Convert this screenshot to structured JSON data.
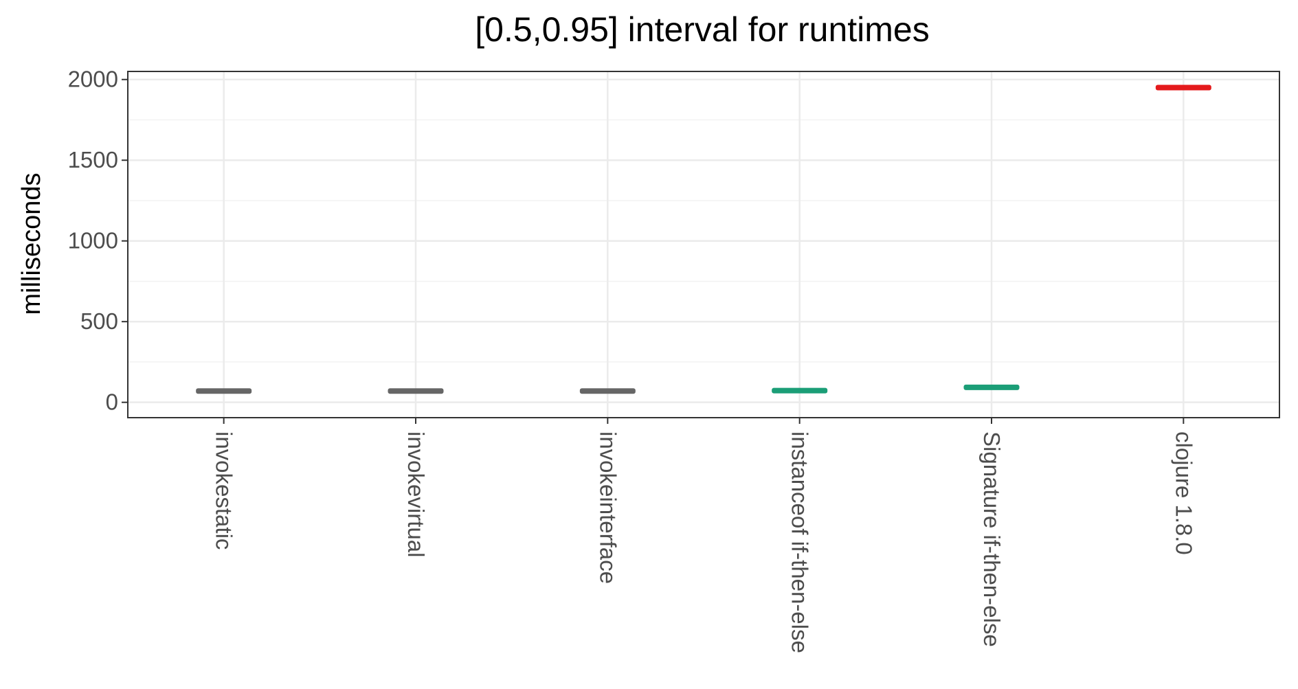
{
  "chart_data": {
    "type": "interval",
    "title": "[0.5,0.95] interval for runtimes",
    "xlabel": "",
    "ylabel": "milliseconds",
    "categories": [
      "invokestatic",
      "invokevirtual",
      "invokeinterface",
      "instanceof if-then-else",
      "Signature if-then-else",
      "clojure 1.8.0"
    ],
    "intervals": [
      {
        "low": 60,
        "high": 80,
        "color": "#666666"
      },
      {
        "low": 60,
        "high": 80,
        "color": "#666666"
      },
      {
        "low": 60,
        "high": 80,
        "color": "#666666"
      },
      {
        "low": 62,
        "high": 83,
        "color": "#1b9e77"
      },
      {
        "low": 83,
        "high": 103,
        "color": "#1b9e77"
      },
      {
        "low": 1935,
        "high": 1965,
        "color": "#e41a1c"
      }
    ],
    "yticks": [
      "0",
      "500",
      "1000",
      "1500",
      "2000"
    ],
    "ytick_values": [
      0,
      500,
      1000,
      1500,
      2000
    ],
    "ylim": [
      -95,
      2050
    ],
    "grid": true,
    "theme": "bw"
  }
}
